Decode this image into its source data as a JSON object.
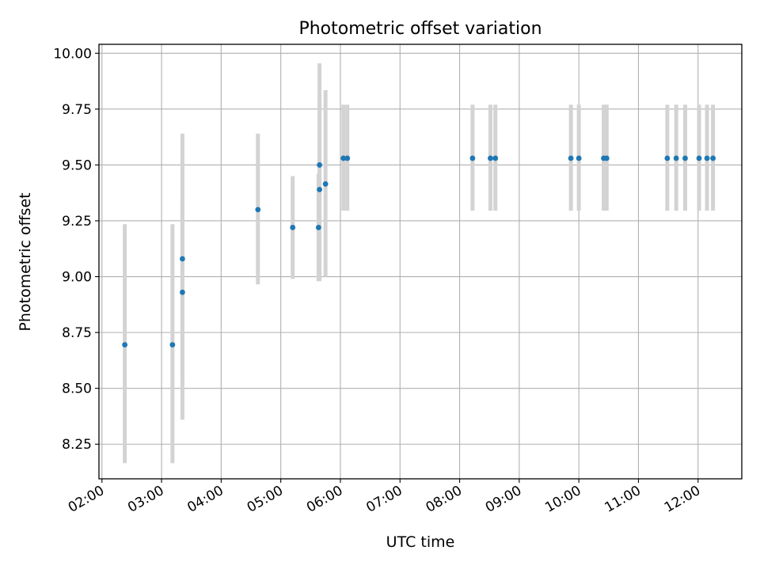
{
  "chart_data": {
    "type": "scatter",
    "title": "Photometric offset variation",
    "xlabel": "UTC time",
    "ylabel": "Photometric offset",
    "x_tick_labels": [
      "02:00",
      "03:00",
      "04:00",
      "05:00",
      "06:00",
      "07:00",
      "08:00",
      "09:00",
      "10:00",
      "11:00",
      "12:00"
    ],
    "y_tick_labels": [
      "8.25",
      "8.50",
      "8.75",
      "9.00",
      "9.25",
      "9.50",
      "9.75",
      "10.00"
    ],
    "xlim": [
      "01:57",
      "12:44"
    ],
    "ylim": [
      8.095,
      10.04
    ],
    "grid": true,
    "colors": {
      "points": "#1f77b4",
      "error_bars": "#d3d3d3",
      "grid": "#b0b0b0",
      "axes": "#000000"
    },
    "points": [
      {
        "x": "02:23",
        "y": 8.695,
        "y_low": 8.165,
        "y_high": 9.235
      },
      {
        "x": "03:11",
        "y": 8.695,
        "y_low": 8.165,
        "y_high": 9.235
      },
      {
        "x": "03:21",
        "y": 8.93,
        "y_low": 8.53,
        "y_high": 9.34
      },
      {
        "x": "03:21",
        "y": 9.08,
        "y_low": 8.36,
        "y_high": 9.64
      },
      {
        "x": "04:37",
        "y": 9.3,
        "y_low": 8.965,
        "y_high": 9.64
      },
      {
        "x": "05:12",
        "y": 9.22,
        "y_low": 8.99,
        "y_high": 9.45
      },
      {
        "x": "05:38",
        "y": 9.22,
        "y_low": 8.98,
        "y_high": 9.46
      },
      {
        "x": "05:39",
        "y": 9.5,
        "y_low": 9.05,
        "y_high": 9.955
      },
      {
        "x": "05:39",
        "y": 9.39,
        "y_low": 8.98,
        "y_high": 9.81
      },
      {
        "x": "05:45",
        "y": 9.415,
        "y_low": 9.0,
        "y_high": 9.835
      },
      {
        "x": "06:03",
        "y": 9.53,
        "y_low": 9.295,
        "y_high": 9.77
      },
      {
        "x": "06:07",
        "y": 9.53,
        "y_low": 9.295,
        "y_high": 9.77
      },
      {
        "x": "08:13",
        "y": 9.53,
        "y_low": 9.295,
        "y_high": 9.77
      },
      {
        "x": "08:31",
        "y": 9.53,
        "y_low": 9.295,
        "y_high": 9.77
      },
      {
        "x": "08:36",
        "y": 9.53,
        "y_low": 9.295,
        "y_high": 9.77
      },
      {
        "x": "09:52",
        "y": 9.53,
        "y_low": 9.295,
        "y_high": 9.77
      },
      {
        "x": "10:00",
        "y": 9.53,
        "y_low": 9.295,
        "y_high": 9.77
      },
      {
        "x": "10:25",
        "y": 9.53,
        "y_low": 9.295,
        "y_high": 9.77
      },
      {
        "x": "10:28",
        "y": 9.53,
        "y_low": 9.295,
        "y_high": 9.77
      },
      {
        "x": "11:29",
        "y": 9.53,
        "y_low": 9.295,
        "y_high": 9.77
      },
      {
        "x": "11:38",
        "y": 9.53,
        "y_low": 9.295,
        "y_high": 9.77
      },
      {
        "x": "11:47",
        "y": 9.53,
        "y_low": 9.295,
        "y_high": 9.77
      },
      {
        "x": "12:01",
        "y": 9.53,
        "y_low": 9.295,
        "y_high": 9.77
      },
      {
        "x": "12:09",
        "y": 9.53,
        "y_low": 9.295,
        "y_high": 9.77
      },
      {
        "x": "12:15",
        "y": 9.53,
        "y_low": 9.295,
        "y_high": 9.77
      }
    ]
  }
}
